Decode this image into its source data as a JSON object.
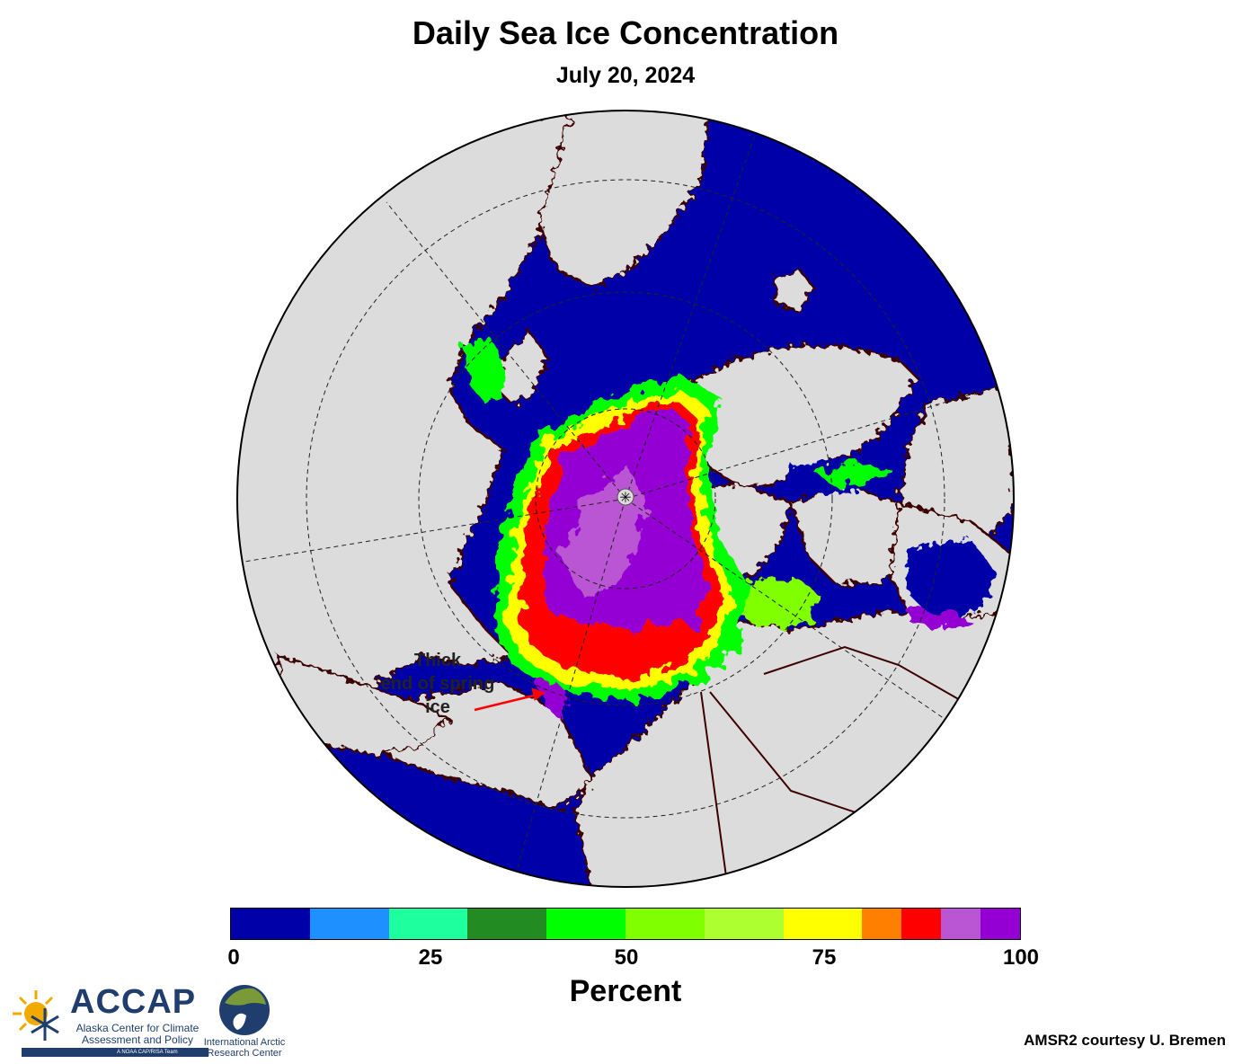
{
  "header": {
    "title": "Daily Sea Ice Concentration",
    "date": "July 20, 2024"
  },
  "map": {
    "projection": "polar stereographic, North Pole",
    "ocean_color": "#0000A8",
    "land_color": "#DCDCDC",
    "coast_color": "#3d0000",
    "annotation": {
      "lines": [
        "Thick",
        "end of spring",
        "ice"
      ],
      "arrow_color": "#ff0000"
    }
  },
  "colorbar": {
    "label": "Percent",
    "ticks": [
      "0",
      "25",
      "50",
      "75",
      "100"
    ],
    "bins": [
      {
        "from": 0,
        "to": 10,
        "color": "#0000A8"
      },
      {
        "from": 10,
        "to": 20,
        "color": "#1E90FF"
      },
      {
        "from": 20,
        "to": 30,
        "color": "#1EFF9E"
      },
      {
        "from": 30,
        "to": 40,
        "color": "#228B22"
      },
      {
        "from": 40,
        "to": 50,
        "color": "#00FF00"
      },
      {
        "from": 50,
        "to": 60,
        "color": "#7FFF00"
      },
      {
        "from": 60,
        "to": 70,
        "color": "#ADFF2F"
      },
      {
        "from": 70,
        "to": 80,
        "color": "#FFFF00"
      },
      {
        "from": 80,
        "to": 85,
        "color": "#FF7F00"
      },
      {
        "from": 85,
        "to": 90,
        "color": "#FF0000"
      },
      {
        "from": 90,
        "to": 95,
        "color": "#BA55D3"
      },
      {
        "from": 95,
        "to": 100,
        "color": "#9400D3"
      }
    ]
  },
  "logos": {
    "accap_name": "ACCAP",
    "accap_subtitle": "Alaska Center for Climate Assessment and Policy",
    "accap_team": "A NOAA CAP/RISA Team",
    "iarc_name": "International Arctic Research Center"
  },
  "credit": "AMSR2 courtesy U. Bremen"
}
